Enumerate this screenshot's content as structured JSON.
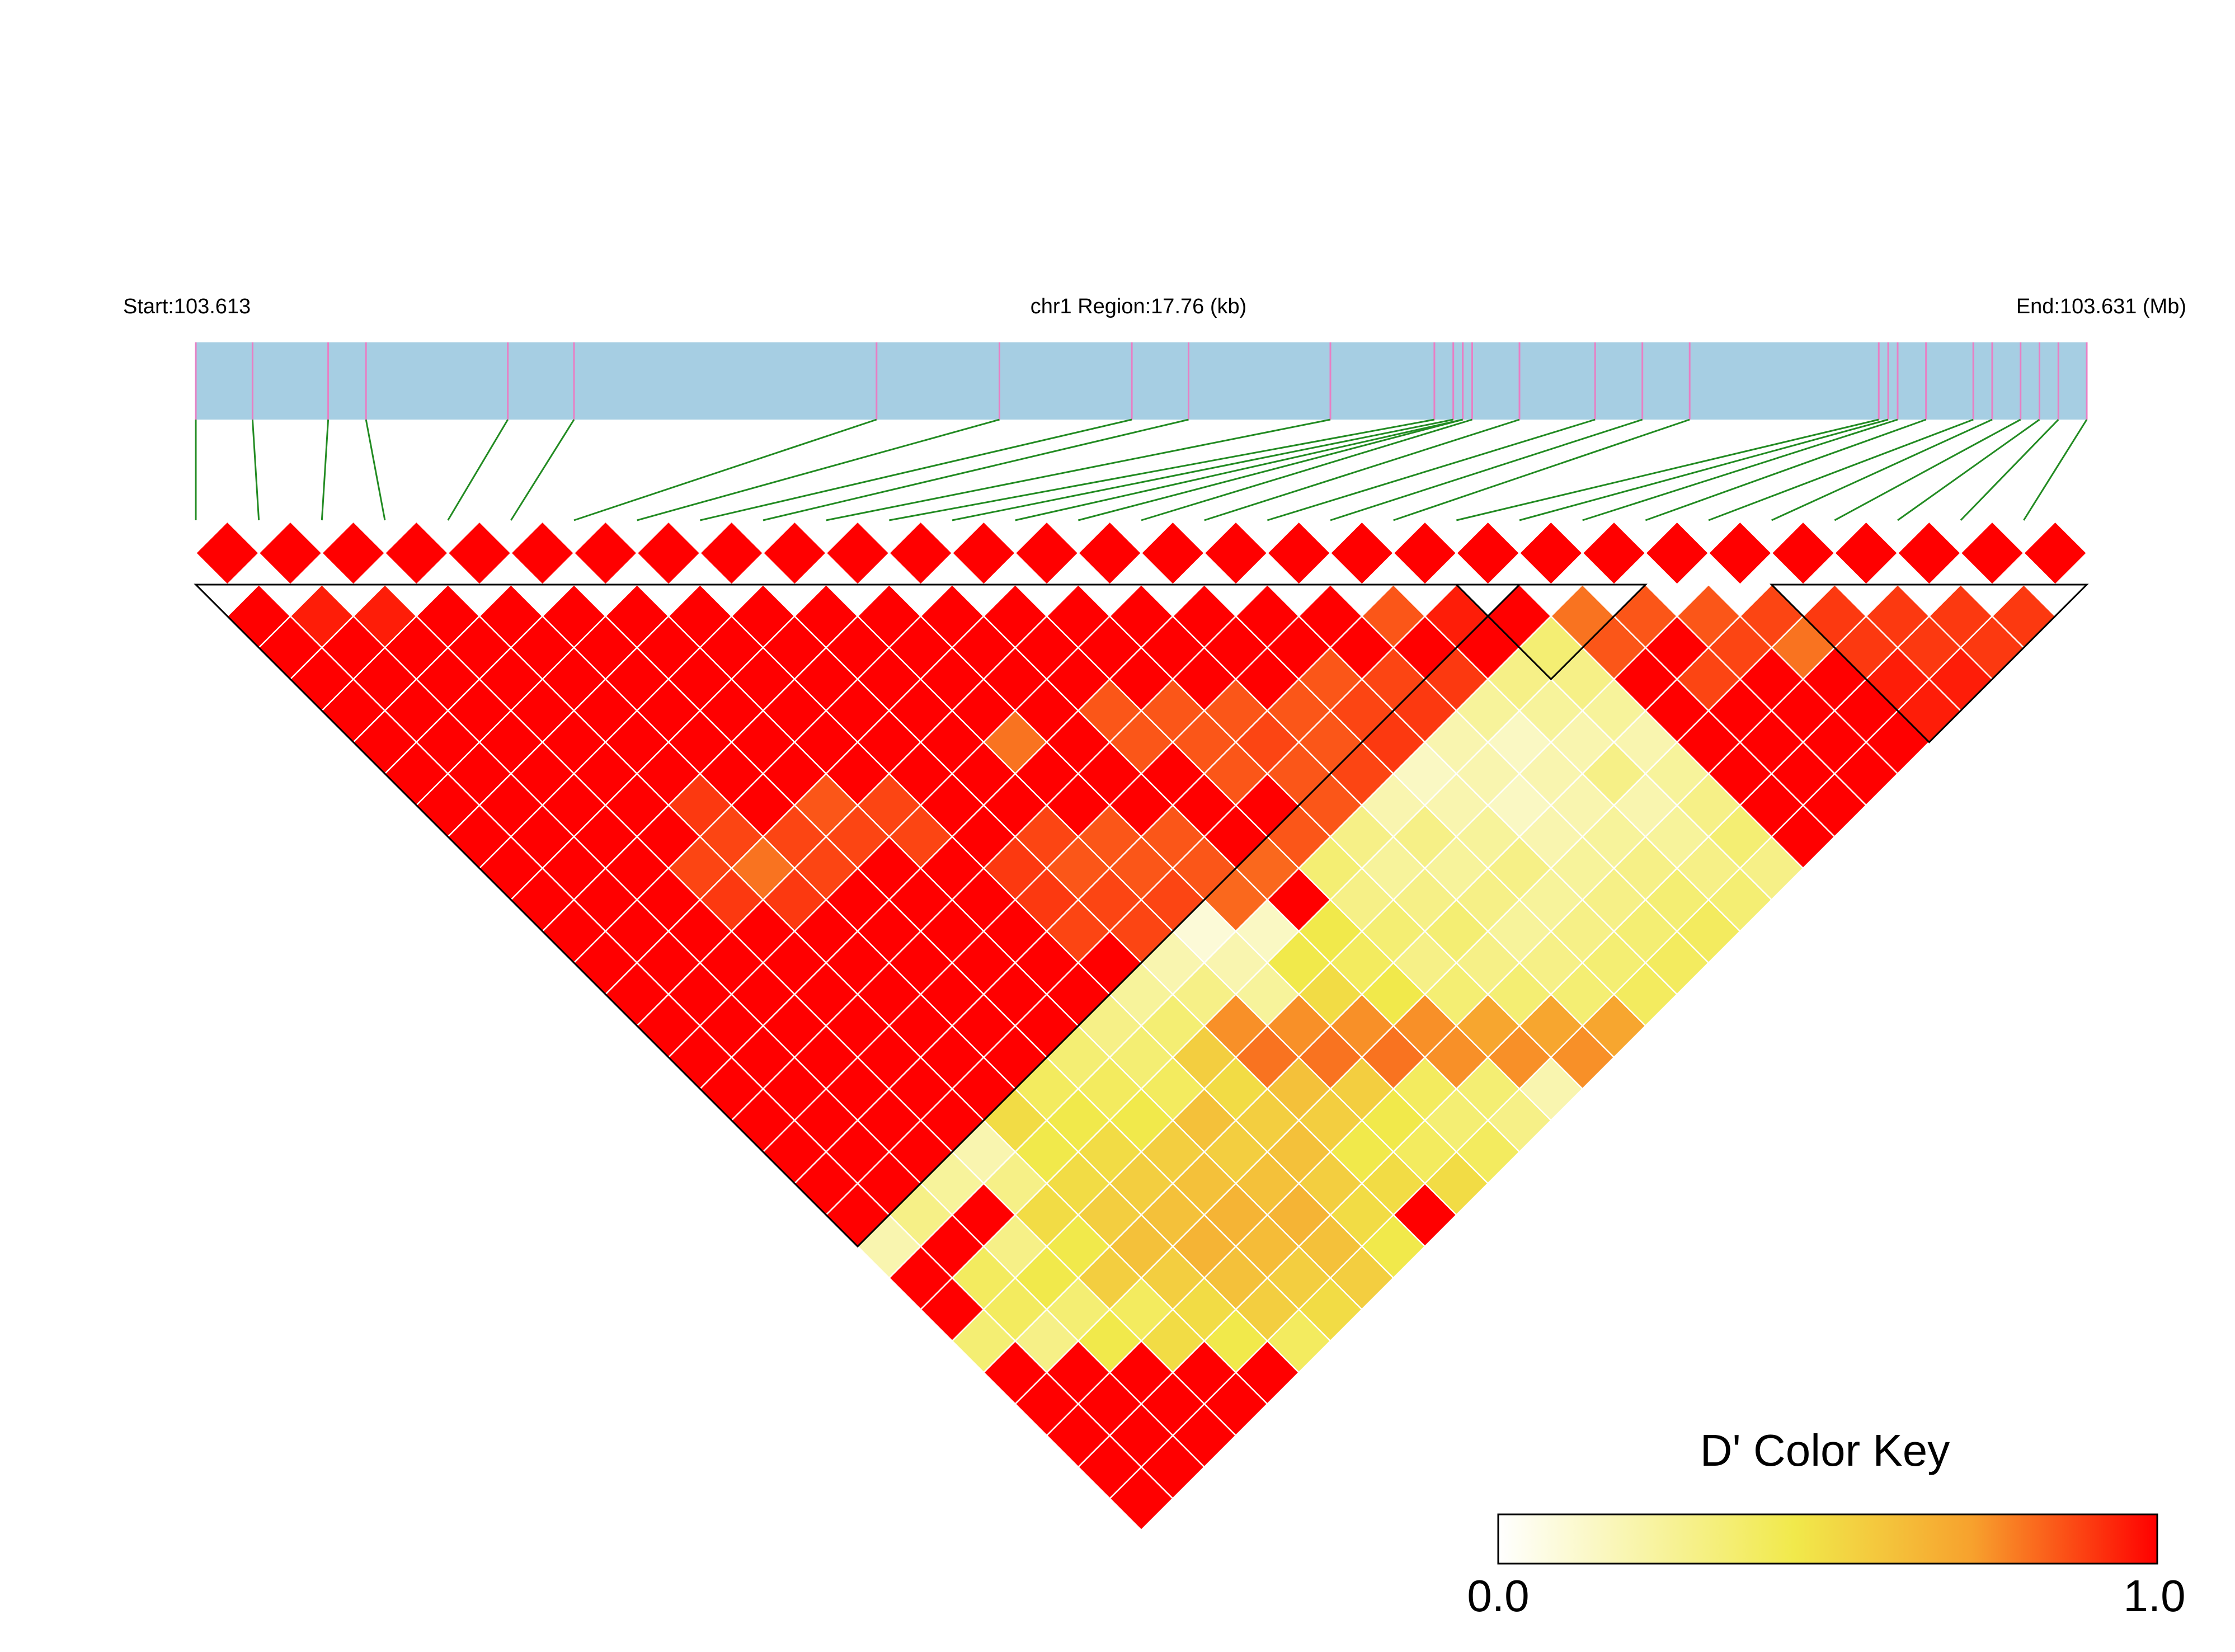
{
  "header": {
    "start_label": "Start:103.613",
    "region_label": "chr1 Region:17.76 (kb)",
    "end_label": "End:103.631 (Mb)"
  },
  "colors": {
    "track": "#a6cee3",
    "snp_tick": "#e87fc4",
    "connector": "#228b22",
    "block_outline": "#000000",
    "cell_border": "#ffffff",
    "scale": [
      "#ffffff",
      "#f1e94b",
      "#f7a12d",
      "#ff0000"
    ]
  },
  "color_key": {
    "title": "D' Color Key",
    "min_label": "0.0",
    "max_label": "1.0"
  },
  "chart_data": {
    "type": "heatmap",
    "title": "",
    "region": {
      "chromosome": "chr1",
      "start_mb": 103.613,
      "end_mb": 103.631,
      "length_kb": 17.76
    },
    "metric": "D'",
    "n_markers": 30,
    "marker_positions_mb": [
      103.613,
      103.6136,
      103.6144,
      103.6148,
      103.6163,
      103.617,
      103.6202,
      103.6215,
      103.6229,
      103.6235,
      103.625,
      103.6261,
      103.6263,
      103.6264,
      103.6264,
      103.6265,
      103.627,
      103.6278,
      103.6283,
      103.6288,
      103.6308,
      103.6309,
      103.631,
      103.6313,
      103.6318,
      103.632,
      103.6323,
      103.6325,
      103.6327,
      103.633
    ],
    "haplotype_blocks": [
      [
        1,
        21
      ],
      [
        21,
        23
      ],
      [
        26,
        30
      ]
    ],
    "cells_note": "D' value for each marker pair [i, j] (1-based); unlisted pairs have D' = 1.0",
    "default_dprime": 1.0,
    "cells": [
      [
        2,
        3,
        0.95
      ],
      [
        3,
        4,
        0.95
      ],
      [
        19,
        20,
        0.85
      ],
      [
        20,
        21,
        0.95
      ],
      [
        22,
        23,
        0.8
      ],
      [
        22,
        24,
        0.85
      ],
      [
        23,
        24,
        0.85
      ],
      [
        23,
        26,
        0.88
      ],
      [
        24,
        25,
        0.85
      ],
      [
        24,
        26,
        0.88
      ],
      [
        25,
        26,
        0.88
      ],
      [
        25,
        27,
        0.8
      ],
      [
        26,
        27,
        0.9
      ],
      [
        26,
        28,
        0.9
      ],
      [
        27,
        28,
        0.9
      ],
      [
        27,
        29,
        0.9
      ],
      [
        28,
        29,
        0.9
      ],
      [
        28,
        30,
        0.9
      ],
      [
        29,
        30,
        0.9
      ],
      [
        27,
        30,
        0.95
      ],
      [
        26,
        29,
        0.95
      ],
      [
        26,
        30,
        0.95
      ],
      [
        10,
        24,
        0.75
      ],
      [
        10,
        25,
        0.8
      ],
      [
        11,
        25,
        0.75
      ],
      [
        11,
        26,
        0.8
      ],
      [
        12,
        26,
        0.75
      ],
      [
        12,
        27,
        0.8
      ],
      [
        13,
        27,
        0.75
      ],
      [
        13,
        28,
        0.75
      ],
      [
        14,
        28,
        0.7
      ],
      [
        14,
        29,
        0.75
      ],
      [
        15,
        29,
        0.7
      ],
      [
        15,
        30,
        0.75
      ],
      [
        16,
        30,
        0.7
      ],
      [
        12,
        22,
        0.82
      ],
      [
        13,
        22,
        0.82
      ],
      [
        14,
        22,
        0.85
      ],
      [
        15,
        22,
        0.85
      ],
      [
        16,
        22,
        0.88
      ],
      [
        17,
        22,
        0.9
      ],
      [
        18,
        22,
        0.9
      ],
      [
        19,
        22,
        0.9
      ],
      [
        13,
        17,
        0.85
      ],
      [
        14,
        18,
        0.85
      ],
      [
        15,
        19,
        0.85
      ],
      [
        16,
        20,
        0.85
      ],
      [
        17,
        20,
        0.85
      ],
      [
        16,
        21,
        0.85
      ],
      [
        17,
        21,
        0.88
      ],
      [
        18,
        21,
        0.88
      ],
      [
        15,
        20,
        0.88
      ],
      [
        14,
        20,
        0.85
      ],
      [
        14,
        19,
        0.85
      ],
      [
        15,
        21,
        0.85
      ],
      [
        13,
        18,
        0.85
      ],
      [
        10,
        19,
        0.85
      ],
      [
        11,
        19,
        0.85
      ],
      [
        11,
        20,
        0.85
      ],
      [
        12,
        20,
        0.85
      ],
      [
        12,
        21,
        0.85
      ],
      [
        9,
        19,
        0.9
      ],
      [
        9,
        20,
        0.88
      ],
      [
        10,
        20,
        0.88
      ],
      [
        10,
        21,
        0.88
      ],
      [
        11,
        21,
        0.88
      ],
      [
        10,
        18,
        0.88
      ],
      [
        9,
        18,
        0.9
      ],
      [
        11,
        16,
        0.8
      ],
      [
        8,
        16,
        0.88
      ],
      [
        7,
        14,
        0.85
      ],
      [
        7,
        15,
        0.88
      ],
      [
        8,
        15,
        0.88
      ],
      [
        5,
        14,
        0.8
      ],
      [
        6,
        14,
        0.88
      ],
      [
        6,
        15,
        0.88
      ],
      [
        4,
        13,
        0.88
      ],
      [
        5,
        13,
        0.88
      ],
      [
        4,
        14,
        0.9
      ],
      [
        5,
        15,
        0.9
      ],
      [
        5,
        12,
        0.9
      ],
      [
        11,
        22,
        0.1
      ],
      [
        11,
        23,
        0.2
      ],
      [
        12,
        23,
        0.15
      ],
      [
        10,
        22,
        0.2
      ],
      [
        10,
        23,
        0.3
      ],
      [
        11,
        24,
        0.25
      ],
      [
        9,
        22,
        0.25
      ],
      [
        9,
        23,
        0.35
      ],
      [
        10,
        26,
        0.6
      ],
      [
        10,
        27,
        0.55
      ],
      [
        10,
        28,
        0.45
      ],
      [
        10,
        29,
        0.5
      ],
      [
        11,
        27,
        0.55
      ],
      [
        11,
        28,
        0.45
      ],
      [
        11,
        29,
        0.4
      ],
      [
        11,
        30,
        0.5
      ],
      [
        12,
        28,
        0.4
      ],
      [
        12,
        29,
        0.35
      ],
      [
        12,
        30,
        0.4
      ],
      [
        13,
        29,
        0.35
      ],
      [
        13,
        30,
        0.3
      ],
      [
        14,
        30,
        0.2
      ],
      [
        12,
        24,
        0.45
      ],
      [
        12,
        25,
        0.5
      ],
      [
        13,
        24,
        0.45
      ],
      [
        13,
        25,
        0.4
      ],
      [
        13,
        26,
        0.45
      ],
      [
        14,
        23,
        0.35
      ],
      [
        14,
        24,
        0.3
      ],
      [
        14,
        25,
        0.35
      ],
      [
        14,
        26,
        0.3
      ],
      [
        14,
        27,
        0.35
      ],
      [
        15,
        23,
        0.3
      ],
      [
        15,
        24,
        0.25
      ],
      [
        15,
        25,
        0.3
      ],
      [
        15,
        26,
        0.35
      ],
      [
        15,
        27,
        0.3
      ],
      [
        15,
        28,
        0.35
      ],
      [
        16,
        23,
        0.2
      ],
      [
        16,
        24,
        0.3
      ],
      [
        16,
        25,
        0.25
      ],
      [
        16,
        26,
        0.3
      ],
      [
        16,
        27,
        0.25
      ],
      [
        16,
        28,
        0.3
      ],
      [
        16,
        29,
        0.35
      ],
      [
        17,
        23,
        0.15
      ],
      [
        17,
        24,
        0.2
      ],
      [
        17,
        25,
        0.25
      ],
      [
        17,
        26,
        0.3
      ],
      [
        17,
        27,
        0.25
      ],
      [
        17,
        28,
        0.3
      ],
      [
        17,
        29,
        0.35
      ],
      [
        17,
        30,
        0.4
      ],
      [
        18,
        23,
        0.2
      ],
      [
        18,
        24,
        0.2
      ],
      [
        18,
        25,
        0.15
      ],
      [
        18,
        26,
        0.2
      ],
      [
        18,
        27,
        0.25
      ],
      [
        18,
        28,
        0.3
      ],
      [
        18,
        29,
        0.35
      ],
      [
        18,
        30,
        0.4
      ],
      [
        19,
        23,
        0.25
      ],
      [
        19,
        24,
        0.15
      ],
      [
        19,
        25,
        0.2
      ],
      [
        19,
        26,
        0.2
      ],
      [
        19,
        27,
        0.25
      ],
      [
        19,
        28,
        0.3
      ],
      [
        19,
        29,
        0.35
      ],
      [
        19,
        30,
        0.4
      ],
      [
        20,
        23,
        0.3
      ],
      [
        20,
        24,
        0.25
      ],
      [
        20,
        25,
        0.2
      ],
      [
        20,
        26,
        0.3
      ],
      [
        20,
        27,
        0.2
      ],
      [
        20,
        28,
        0.25
      ],
      [
        20,
        29,
        0.3
      ],
      [
        20,
        30,
        0.35
      ],
      [
        21,
        23,
        0.35
      ],
      [
        21,
        24,
        0.3
      ],
      [
        21,
        25,
        0.25
      ],
      [
        21,
        26,
        0.2
      ],
      [
        21,
        27,
        0.25
      ],
      [
        21,
        28,
        0.3
      ],
      [
        21,
        29,
        0.35
      ],
      [
        21,
        30,
        0.3
      ],
      [
        9,
        24,
        0.55
      ],
      [
        9,
        25,
        0.5
      ],
      [
        9,
        26,
        0.55
      ],
      [
        9,
        27,
        0.6
      ],
      [
        9,
        28,
        0.55
      ],
      [
        9,
        29,
        0.5
      ],
      [
        9,
        30,
        0.45
      ],
      [
        8,
        22,
        0.3
      ],
      [
        8,
        23,
        0.35
      ],
      [
        8,
        24,
        0.4
      ],
      [
        8,
        25,
        0.6
      ],
      [
        8,
        26,
        0.55
      ],
      [
        8,
        27,
        0.6
      ],
      [
        8,
        28,
        0.65
      ],
      [
        8,
        29,
        0.6
      ],
      [
        8,
        30,
        0.55
      ],
      [
        7,
        22,
        0.35
      ],
      [
        7,
        23,
        0.4
      ],
      [
        7,
        24,
        0.45
      ],
      [
        7,
        25,
        0.55
      ],
      [
        7,
        26,
        0.6
      ],
      [
        7,
        27,
        0.65
      ],
      [
        7,
        28,
        0.62
      ],
      [
        7,
        29,
        0.55
      ],
      [
        7,
        30,
        0.5
      ],
      [
        6,
        22,
        0.4
      ],
      [
        6,
        23,
        0.45
      ],
      [
        6,
        24,
        0.5
      ],
      [
        6,
        25,
        0.55
      ],
      [
        6,
        26,
        0.6
      ],
      [
        6,
        27,
        0.65
      ],
      [
        6,
        28,
        0.6
      ],
      [
        6,
        29,
        0.55
      ],
      [
        5,
        23,
        0.45
      ],
      [
        5,
        24,
        0.5
      ],
      [
        5,
        25,
        0.55
      ],
      [
        5,
        26,
        0.6
      ],
      [
        5,
        27,
        0.55
      ],
      [
        5,
        28,
        0.5
      ],
      [
        4,
        24,
        0.5
      ],
      [
        4,
        25,
        0.45
      ],
      [
        4,
        26,
        0.55
      ],
      [
        4,
        27,
        0.4
      ],
      [
        3,
        25,
        0.45
      ],
      [
        3,
        26,
        0.35
      ],
      [
        2,
        25,
        0.4
      ],
      [
        2,
        26,
        0.3
      ],
      [
        1,
        25,
        0.35
      ],
      [
        3,
        27,
        0.45
      ],
      [
        4,
        28,
        0.5
      ],
      [
        5,
        29,
        0.45
      ],
      [
        6,
        30,
        0.4
      ],
      [
        3,
        22,
        0.25
      ],
      [
        4,
        22,
        0.2
      ],
      [
        5,
        22,
        0.5
      ],
      [
        2,
        22,
        0.3
      ],
      [
        1,
        22,
        0.2
      ],
      [
        4,
        23,
        0.3
      ],
      [
        3,
        24,
        0.3
      ],
      [
        2,
        24,
        0.4
      ]
    ]
  }
}
